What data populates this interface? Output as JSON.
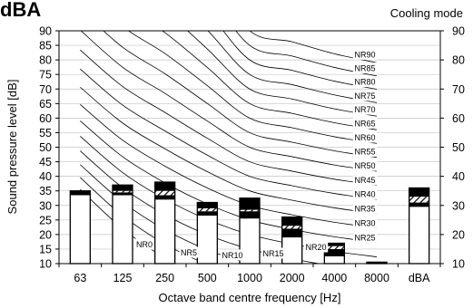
{
  "header": {
    "corner_title": "dBA",
    "mode": "Cooling mode"
  },
  "chart_data": {
    "type": "bar",
    "categories": [
      "63",
      "125",
      "250",
      "500",
      "1000",
      "2000",
      "4000",
      "8000",
      "dBA"
    ],
    "xlabel": "Octave band centre frequency [Hz]",
    "ylabel": "Sound pressure level [dB]",
    "ylim": [
      10,
      90
    ],
    "yticks": [
      10,
      15,
      20,
      25,
      30,
      35,
      40,
      45,
      50,
      55,
      60,
      65,
      70,
      75,
      80,
      85,
      90
    ],
    "yticks_right": [
      10,
      20,
      30,
      40,
      50,
      60,
      70,
      80,
      90
    ],
    "grid": "horizontal",
    "series": [
      {
        "values": [
          33.5,
          33.5,
          32.0,
          26.5,
          25.5,
          19.0,
          12.5,
          10.0,
          29.5
        ]
      },
      {
        "values": [
          33.5,
          34.5,
          33.5,
          28.0,
          28.0,
          22.0,
          15.0,
          10.0,
          31.0
        ]
      },
      {
        "values": [
          33.5,
          35.0,
          35.0,
          29.0,
          28.5,
          23.0,
          16.0,
          10.0,
          33.0
        ]
      },
      {
        "values": [
          35.0,
          37.0,
          38.0,
          31.0,
          32.5,
          26.0,
          17.0,
          10.5,
          36.0
        ]
      }
    ],
    "nr_curves": {
      "nr_values": [
        0,
        5,
        10,
        15,
        20,
        25,
        30,
        35,
        40,
        45,
        50,
        55,
        60,
        65,
        70,
        75,
        80,
        85,
        90
      ],
      "labels": [
        "NR0",
        "NR5",
        "NR10",
        "NR15",
        "NR20",
        "NR25",
        "NR30",
        "NR35",
        "NR40",
        "NR45",
        "NR50",
        "NR55",
        "NR60",
        "NR65",
        "NR70",
        "NR75",
        "NR80",
        "NR85",
        "NR90"
      ]
    }
  }
}
